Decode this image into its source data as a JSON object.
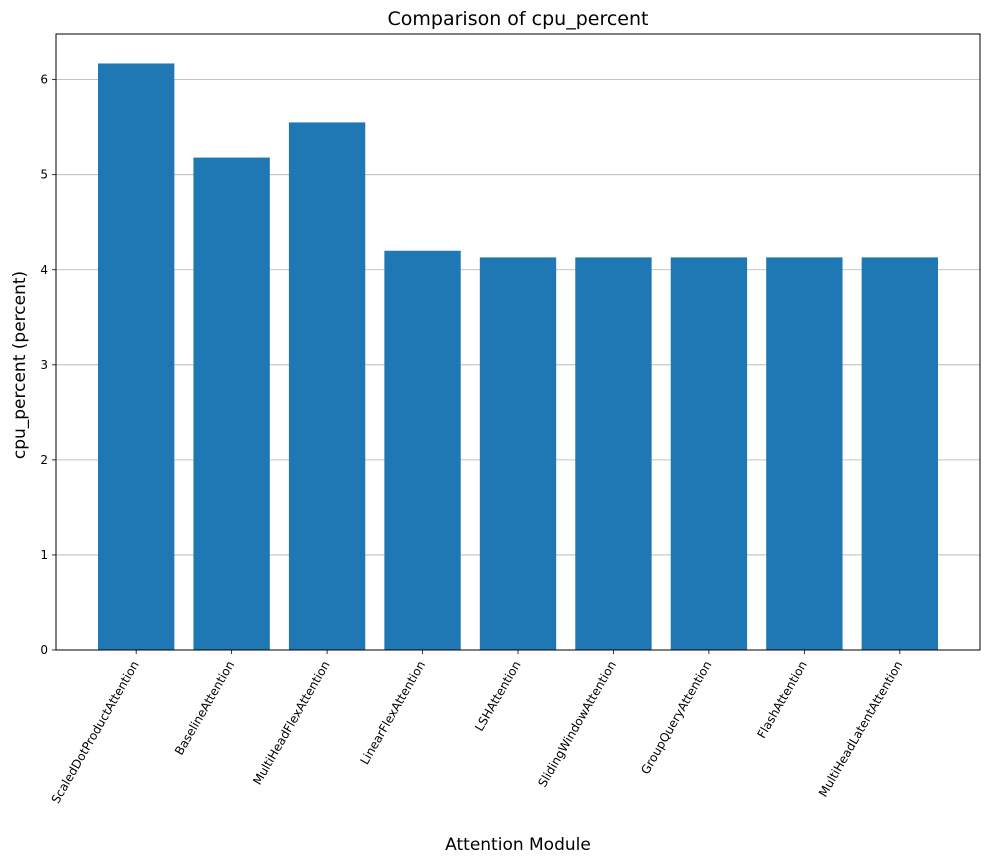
{
  "chart_data": {
    "type": "bar",
    "title": "Comparison of cpu_percent",
    "xlabel": "Attention Module",
    "ylabel": "cpu_percent (percent)",
    "categories": [
      "ScaledDotProductAttention",
      "BaselineAttention",
      "MultiHeadFlexAttention",
      "LinearFlexAttention",
      "LSHAttention",
      "SlidingWindowAttention",
      "GroupQueryAttention",
      "FlashAttention",
      "MultiHeadLatentAttention"
    ],
    "values": [
      6.17,
      5.18,
      5.55,
      4.2,
      4.13,
      4.13,
      4.13,
      4.13,
      4.13
    ],
    "ylim": [
      0,
      6.48
    ],
    "yticks": [
      0,
      1,
      2,
      3,
      4,
      5,
      6
    ],
    "grid": "y",
    "legend": "none",
    "bar_color": "#1f77b4"
  }
}
